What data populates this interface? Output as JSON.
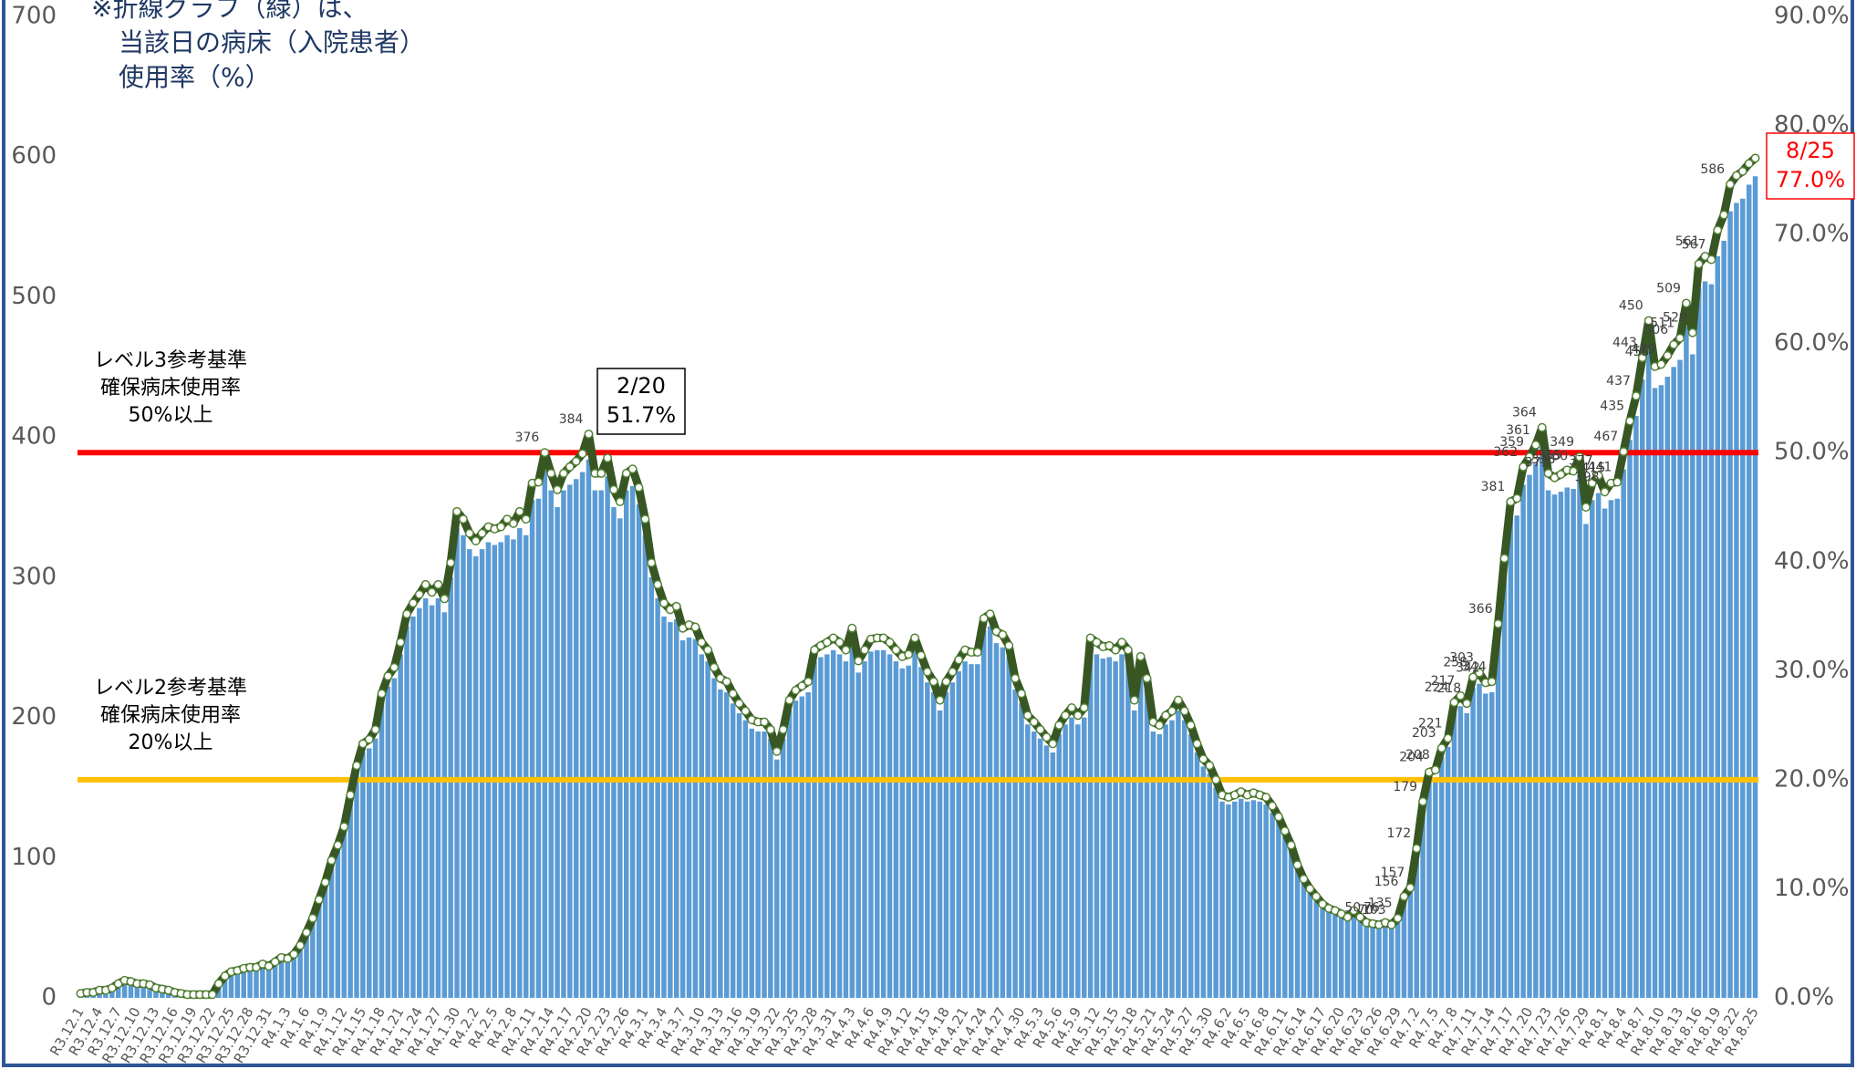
{
  "chart_data": {
    "type": "bar_line",
    "note": [
      "※折線グラフ（緑）は、",
      "当該日の病床（入院患者）",
      "使用率（%）"
    ],
    "categories": [
      "R3.12.1",
      null,
      null,
      "R3.12.4",
      null,
      null,
      "R3.12.7",
      null,
      null,
      "R3.12.10",
      null,
      null,
      "R3.12.13",
      null,
      null,
      "R3.12.16",
      null,
      null,
      "R3.12.19",
      null,
      null,
      "R3.12.22",
      null,
      null,
      "R3.12.25",
      null,
      null,
      "R3.12.28",
      null,
      null,
      "R3.12.31",
      null,
      null,
      "R4.1.3",
      null,
      null,
      "R4.1.6",
      null,
      null,
      "R4.1.9",
      null,
      null,
      "R4.1.12",
      null,
      null,
      "R4.1.15",
      null,
      null,
      "R4.1.18",
      null,
      null,
      "R4.1.21",
      null,
      null,
      "R4.1.24",
      null,
      null,
      "R4.1.27",
      null,
      null,
      "R4.1.30",
      null,
      null,
      "R4.2.2",
      null,
      null,
      "R4.2.5",
      null,
      null,
      "R4.2.8",
      null,
      null,
      "R4.2.11",
      null,
      null,
      "R4.2.14",
      null,
      null,
      "R4.2.17",
      null,
      null,
      "R4.2.20",
      null,
      null,
      "R4.2.23",
      null,
      null,
      "R4.2.26",
      null,
      null,
      "R4.3.1",
      null,
      null,
      "R4.3.4",
      null,
      null,
      "R4.3.7",
      null,
      null,
      "R4.3.10",
      null,
      null,
      "R4.3.13",
      null,
      null,
      "R4.3.16",
      null,
      null,
      "R4.3.19",
      null,
      null,
      "R4.3.22",
      null,
      null,
      "R4.3.25",
      null,
      null,
      "R4.3.28",
      null,
      null,
      "R4.3.31",
      null,
      null,
      "R4.4.3",
      null,
      null,
      "R4.4.6",
      null,
      null,
      "R4.4.9",
      null,
      null,
      "R4.4.12",
      null,
      null,
      "R4.4.15",
      null,
      null,
      "R4.4.18",
      null,
      null,
      "R4.4.21",
      null,
      null,
      "R4.4.24",
      null,
      null,
      "R4.4.27",
      null,
      null,
      "R4.4.30",
      null,
      null,
      "R4.5.3",
      null,
      null,
      "R4.5.6",
      null,
      null,
      "R4.5.9",
      null,
      null,
      "R4.5.12",
      null,
      null,
      "R4.5.15",
      null,
      null,
      "R4.5.18",
      null,
      null,
      "R4.5.21",
      null,
      null,
      "R4.5.24",
      null,
      null,
      "R4.5.27",
      null,
      null,
      "R4.5.30",
      null,
      null,
      "R4.6.2",
      null,
      null,
      "R4.6.5",
      null,
      null,
      "R4.6.8",
      null,
      null,
      "R4.6.11",
      null,
      null,
      "R4.6.14",
      null,
      null,
      "R4.6.17",
      null,
      null,
      "R4.6.20",
      null,
      null,
      "R4.6.23",
      null,
      null,
      "R4.6.26",
      null,
      null,
      "R4.6.29",
      null,
      null,
      "R4.7.2",
      null,
      null,
      "R4.7.5",
      null,
      null,
      "R4.7.8",
      null,
      null,
      "R4.7.11",
      null,
      null,
      "R4.7.14",
      null,
      null,
      "R4.7.17",
      null,
      null,
      "R4.7.20",
      null,
      null,
      "R4.7.23",
      null,
      null,
      "R4.7.26",
      null,
      null,
      "R4.7.29",
      null,
      null,
      "R4.8.1",
      null,
      null,
      "R4.8.4",
      null,
      null,
      "R4.8.7",
      null,
      null,
      "R4.8.10",
      null,
      null,
      "R4.8.13",
      null,
      null,
      "R4.8.16",
      null,
      null,
      "R4.8.19",
      null,
      null,
      "R4.8.22",
      null,
      null,
      "R4.8.25"
    ],
    "series": [
      {
        "color": "#5b9bd5",
        "values": [
          3,
          4,
          4,
          5,
          5,
          7,
          10,
          12,
          11,
          10,
          10,
          9,
          7,
          6,
          5,
          4,
          3,
          2,
          2,
          2,
          2,
          2,
          10,
          15,
          18,
          19,
          20,
          21,
          21,
          23,
          22,
          25,
          28,
          27,
          30,
          36,
          45,
          55,
          68,
          80,
          95,
          105,
          118,
          140,
          160,
          175,
          178,
          185,
          210,
          222,
          228,
          245,
          265,
          272,
          278,
          285,
          280,
          285,
          275,
          300,
          335,
          330,
          320,
          315,
          320,
          325,
          323,
          325,
          330,
          327,
          335,
          330,
          355,
          356,
          376,
          362,
          350,
          362,
          366,
          370,
          375,
          384,
          362,
          362,
          372,
          350,
          342,
          362,
          365,
          352,
          330,
          300,
          285,
          272,
          268,
          270,
          255,
          257,
          256,
          245,
          240,
          228,
          220,
          218,
          210,
          203,
          198,
          192,
          190,
          190,
          185,
          170,
          185,
          205,
          212,
          215,
          218,
          240,
          243,
          245,
          248,
          245,
          240,
          255,
          232,
          240,
          247,
          248,
          248,
          245,
          240,
          235,
          237,
          248,
          236,
          225,
          218,
          205,
          218,
          225,
          233,
          240,
          238,
          238,
          262,
          265,
          253,
          250,
          243,
          220,
          210,
          195,
          190,
          185,
          180,
          175,
          188,
          195,
          200,
          195,
          200,
          248,
          245,
          242,
          243,
          240,
          245,
          240,
          205,
          235,
          220,
          190,
          188,
          195,
          198,
          205,
          198,
          188,
          175,
          165,
          160,
          150,
          140,
          138,
          140,
          142,
          140,
          141,
          140,
          138,
          132,
          125,
          115,
          105,
          92,
          82,
          75,
          70,
          65,
          62,
          60,
          58,
          56,
          60,
          56,
          52,
          51,
          50,
          52,
          50,
          55,
          70,
          76,
          103,
          135,
          156,
          157,
          172,
          179,
          204,
          208,
          203,
          221,
          224,
          217,
          218,
          258,
          303,
          342,
          344,
          366,
          373,
          381,
          393,
          362,
          359,
          361,
          364,
          363,
          373,
          338,
          355,
          360,
          349,
          355,
          356,
          377,
          398,
          415,
          441,
          467,
          435,
          437,
          443,
          450,
          455,
          479,
          459,
          506,
          511,
          509,
          529,
          540,
          561,
          567,
          570,
          580,
          586
        ],
        "value_labels": [
          null,
          null,
          null,
          null,
          null,
          null,
          null,
          null,
          null,
          null,
          null,
          null,
          null,
          null,
          null,
          null,
          null,
          null,
          null,
          null,
          null,
          null,
          null,
          null,
          null,
          null,
          null,
          null,
          null,
          null,
          null,
          null,
          null,
          null,
          null,
          null,
          null,
          null,
          null,
          null,
          null,
          null,
          null,
          null,
          null,
          null,
          null,
          null,
          null,
          null,
          null,
          null,
          null,
          null,
          null,
          null,
          null,
          null,
          null,
          null,
          null,
          null,
          null,
          null,
          null,
          null,
          null,
          null,
          null,
          null,
          null,
          null,
          null,
          null,
          "376",
          null,
          null,
          null,
          null,
          null,
          null,
          "384",
          null,
          null,
          null,
          null,
          null,
          null,
          null,
          null,
          null,
          null,
          null,
          null,
          null,
          null,
          null,
          null,
          null,
          null,
          null,
          null,
          null,
          null,
          null,
          null,
          null,
          null,
          null,
          null,
          null,
          null,
          null,
          null,
          null,
          null,
          null,
          null,
          null,
          null,
          null,
          null,
          null,
          null,
          null,
          null,
          null,
          null,
          null,
          null,
          null,
          null,
          null,
          null,
          null,
          null,
          null,
          null,
          null,
          null,
          null,
          null,
          null,
          null,
          null,
          null,
          null,
          null,
          null,
          null,
          null,
          null,
          null,
          null,
          null,
          null,
          null,
          null,
          null,
          null,
          null,
          null,
          null,
          null,
          null,
          null,
          null,
          null,
          null,
          null,
          null,
          null,
          null,
          null,
          null,
          null,
          null,
          null,
          null,
          null,
          null,
          null,
          null,
          null,
          null,
          null,
          null,
          null,
          null,
          null,
          null,
          null,
          null,
          null,
          null,
          null,
          null,
          null,
          null,
          null,
          null,
          null,
          null,
          null,
          null,
          "50",
          null,
          "70",
          "76",
          "103",
          "135",
          "156",
          "157",
          "172",
          "179",
          "204",
          "208",
          "203",
          "221",
          "224",
          "217",
          "218",
          "258",
          "303",
          "342",
          "344",
          "366",
          null,
          "381",
          null,
          "362",
          "359",
          "361",
          "364",
          null,
          "373",
          "338",
          "355",
          "360",
          "349",
          null,
          null,
          "377",
          "398",
          "415",
          "441",
          "467",
          "435",
          "437",
          "443",
          "450",
          "455",
          "479",
          null,
          "506",
          "511",
          "509",
          "529",
          null,
          "561",
          "567",
          null,
          null,
          "586"
        ]
      },
      {
        "color": "#375623",
        "axis": "y2",
        "values": [
          0.4,
          0.5,
          0.5,
          0.7,
          0.7,
          0.9,
          1.3,
          1.6,
          1.5,
          1.3,
          1.3,
          1.2,
          0.9,
          0.8,
          0.7,
          0.5,
          0.4,
          0.3,
          0.3,
          0.3,
          0.3,
          0.3,
          1.3,
          2.0,
          2.4,
          2.5,
          2.7,
          2.8,
          2.8,
          3.1,
          2.9,
          3.3,
          3.7,
          3.6,
          4.0,
          4.8,
          6.0,
          7.3,
          9.0,
          10.6,
          12.6,
          14.0,
          15.7,
          18.6,
          21.3,
          23.3,
          23.7,
          24.6,
          27.9,
          29.5,
          30.3,
          32.6,
          35.2,
          36.2,
          37.0,
          37.9,
          37.2,
          37.9,
          36.6,
          39.9,
          44.6,
          43.9,
          42.6,
          41.9,
          42.6,
          43.2,
          43.0,
          43.2,
          43.9,
          43.5,
          44.6,
          43.9,
          47.2,
          47.3,
          50.0,
          48.1,
          46.6,
          48.1,
          48.7,
          49.2,
          49.9,
          51.7,
          48.1,
          48.1,
          49.5,
          46.6,
          45.5,
          48.1,
          48.5,
          46.8,
          43.9,
          39.9,
          37.9,
          36.2,
          35.6,
          35.9,
          33.9,
          34.2,
          34.0,
          32.6,
          31.9,
          30.3,
          29.3,
          29.0,
          27.9,
          27.0,
          26.3,
          25.5,
          25.3,
          25.3,
          24.6,
          22.6,
          24.6,
          27.3,
          28.2,
          28.6,
          29.0,
          31.9,
          32.3,
          32.6,
          33.0,
          32.6,
          31.9,
          33.9,
          30.9,
          31.9,
          32.9,
          33.0,
          33.0,
          32.6,
          31.9,
          31.3,
          31.5,
          33.0,
          31.4,
          29.9,
          29.0,
          27.3,
          29.0,
          29.9,
          31.0,
          31.9,
          31.7,
          31.7,
          34.8,
          35.2,
          33.6,
          33.3,
          32.3,
          29.3,
          27.9,
          25.9,
          25.3,
          24.6,
          23.9,
          23.3,
          25.0,
          25.9,
          26.6,
          25.9,
          26.6,
          33.0,
          32.6,
          32.2,
          32.3,
          31.9,
          32.6,
          31.9,
          27.3,
          31.3,
          29.3,
          25.3,
          25.0,
          25.9,
          26.3,
          27.3,
          26.3,
          25.0,
          23.3,
          21.9,
          21.3,
          20.0,
          18.6,
          18.4,
          18.6,
          18.9,
          18.6,
          18.8,
          18.6,
          18.4,
          17.6,
          16.6,
          15.3,
          14.0,
          12.2,
          10.9,
          10.0,
          9.3,
          8.6,
          8.2,
          8.0,
          7.7,
          7.4,
          8.0,
          7.4,
          6.9,
          6.8,
          6.7,
          6.9,
          6.7,
          7.3,
          9.3,
          10.1,
          13.7,
          18.0,
          20.7,
          20.9,
          22.9,
          23.8,
          27.1,
          27.7,
          27.0,
          29.4,
          29.8,
          28.9,
          29.0,
          34.3,
          40.3,
          45.5,
          45.8,
          48.7,
          49.6,
          50.7,
          52.3,
          48.1,
          47.7,
          48.0,
          48.4,
          48.3,
          49.6,
          45.0,
          47.2,
          47.9,
          46.4,
          47.2,
          47.3,
          50.1,
          52.9,
          55.2,
          58.7,
          62.1,
          57.9,
          58.1,
          58.9,
          59.9,
          60.5,
          63.7,
          61.0,
          67.3,
          68.0,
          67.7,
          70.4,
          71.8,
          74.6,
          75.4,
          75.8,
          76.5,
          77.0
        ]
      }
    ],
    "ylim": [
      0,
      700
    ],
    "yticks": [
      0,
      100,
      200,
      300,
      400,
      500,
      600,
      700
    ],
    "y2lim": [
      0,
      90
    ],
    "y2ticks": [
      {
        "value": 0,
        "label": "0.0%"
      },
      {
        "value": 10,
        "label": "10.0%"
      },
      {
        "value": 20,
        "label": "20.0%"
      },
      {
        "value": 30,
        "label": "30.0%"
      },
      {
        "value": 40,
        "label": "40.0%"
      },
      {
        "value": 50,
        "label": "50.0%"
      },
      {
        "value": 60,
        "label": "60.0%"
      },
      {
        "value": 70,
        "label": "70.0%"
      },
      {
        "value": 80,
        "label": "80.0%"
      },
      {
        "value": 90,
        "label": "90.0%"
      }
    ],
    "ref_lines": [
      {
        "value": 50,
        "axis": "y2",
        "color": "#ff0000",
        "label": [
          "レベル3参考基準",
          "確保病床使用率",
          "50%以上"
        ]
      },
      {
        "value": 20,
        "axis": "y2",
        "color": "#ffc000",
        "label": [
          "レベル2参考基準",
          "確保病床使用率",
          "20%以上"
        ]
      }
    ],
    "callouts": [
      {
        "lines": [
          "2/20",
          "51.7%"
        ],
        "color": "#000000"
      },
      {
        "lines": [
          "8/25",
          "77.0%"
        ],
        "color": "#ff0000"
      }
    ]
  }
}
